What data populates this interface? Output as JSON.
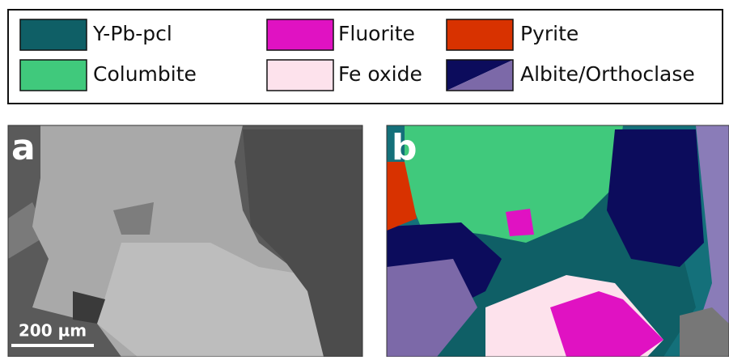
{
  "legend": {
    "items": [
      {
        "label": "Y-Pb-pcl",
        "color": "#0f5f66"
      },
      {
        "label": "Columbite",
        "color": "#40c97c"
      },
      {
        "label": "Fluorite",
        "color": "#e012c2"
      },
      {
        "label": "Fe oxide",
        "color": "#fde2ec"
      },
      {
        "label": "Pyrite",
        "color": "#d83200"
      },
      {
        "label": "Albite/Orthoclase",
        "colors": [
          "#0c0c5c",
          "#7c69a8"
        ]
      }
    ]
  },
  "panels": [
    {
      "label": "a",
      "scale_bar": "200 µm"
    },
    {
      "label": "b"
    }
  ]
}
